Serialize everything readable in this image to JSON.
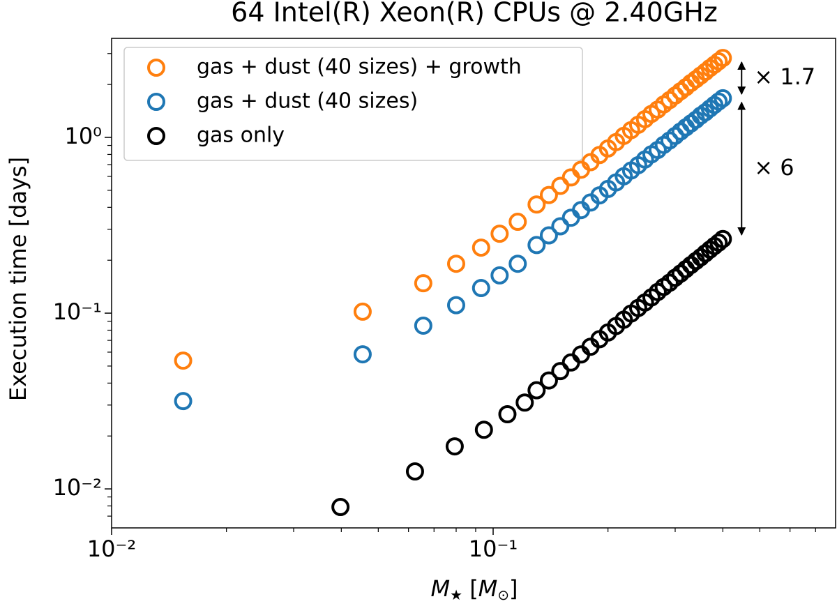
{
  "chart_data": {
    "type": "scatter",
    "title": "64 Intel(R) Xeon(R) CPUs @ 2.40GHz",
    "xlabel_parts": [
      "M",
      "★",
      " [",
      "M",
      "⊙",
      "]"
    ],
    "ylabel": "Execution time [days]",
    "xscale": "log",
    "yscale": "log",
    "xlim": [
      0.01,
      0.79
    ],
    "ylim": [
      0.006,
      3.66
    ],
    "xticks": [
      {
        "value": 0.01,
        "label": "10⁻²"
      },
      {
        "value": 0.1,
        "label": "10⁻¹"
      }
    ],
    "yticks": [
      {
        "value": 0.01,
        "label": "10⁻²"
      },
      {
        "value": 0.1,
        "label": "10⁻¹"
      },
      {
        "value": 1,
        "label": "10⁰"
      }
    ],
    "xminorticks": [
      0.02,
      0.03,
      0.04,
      0.05,
      0.06,
      0.07,
      0.08,
      0.09,
      0.2,
      0.3,
      0.4,
      0.5,
      0.6,
      0.7
    ],
    "yminorticks": [
      0.007,
      0.008,
      0.009,
      0.02,
      0.03,
      0.04,
      0.05,
      0.06,
      0.07,
      0.08,
      0.09,
      0.2,
      0.3,
      0.4,
      0.5,
      0.6,
      0.7,
      0.8,
      0.9,
      2,
      3
    ],
    "legend": "upper left",
    "series": [
      {
        "name": "gas + dust (40 sizes) + growth",
        "color": "#ff7f0e",
        "x": [
          0.0154,
          0.0455,
          0.0656,
          0.08,
          0.093,
          0.104,
          0.116,
          0.13,
          0.14,
          0.15,
          0.16,
          0.17,
          0.18,
          0.19,
          0.2,
          0.21,
          0.22,
          0.23,
          0.24,
          0.25,
          0.26,
          0.27,
          0.28,
          0.29,
          0.3,
          0.31,
          0.32,
          0.33,
          0.34,
          0.35,
          0.36,
          0.37,
          0.38,
          0.39,
          0.4
        ],
        "values": [
          0.0537,
          0.102,
          0.148,
          0.191,
          0.236,
          0.283,
          0.331,
          0.415,
          0.47,
          0.53,
          0.592,
          0.655,
          0.723,
          0.794,
          0.865,
          0.94,
          1.02,
          1.1,
          1.18,
          1.27,
          1.36,
          1.44,
          1.54,
          1.63,
          1.73,
          1.83,
          1.93,
          2.04,
          2.14,
          2.25,
          2.36,
          2.48,
          2.59,
          2.71,
          2.83
        ]
      },
      {
        "name": "gas + dust (40 sizes)",
        "color": "#1f77b4",
        "x": [
          0.0154,
          0.0455,
          0.0656,
          0.08,
          0.093,
          0.104,
          0.116,
          0.13,
          0.14,
          0.15,
          0.16,
          0.17,
          0.18,
          0.19,
          0.2,
          0.21,
          0.22,
          0.23,
          0.24,
          0.25,
          0.26,
          0.27,
          0.28,
          0.29,
          0.3,
          0.31,
          0.32,
          0.33,
          0.34,
          0.35,
          0.36,
          0.37,
          0.38,
          0.39,
          0.4
        ],
        "values": [
          0.0316,
          0.0583,
          0.0849,
          0.111,
          0.139,
          0.164,
          0.191,
          0.244,
          0.277,
          0.312,
          0.349,
          0.386,
          0.426,
          0.468,
          0.509,
          0.554,
          0.601,
          0.648,
          0.695,
          0.748,
          0.801,
          0.848,
          0.907,
          0.96,
          1.02,
          1.08,
          1.14,
          1.2,
          1.26,
          1.33,
          1.39,
          1.46,
          1.53,
          1.6,
          1.67
        ]
      },
      {
        "name": "gas only",
        "color": "#000000",
        "x": [
          0.0398,
          0.0624,
          0.0793,
          0.0946,
          0.109,
          0.121,
          0.13,
          0.14,
          0.15,
          0.16,
          0.17,
          0.18,
          0.19,
          0.2,
          0.21,
          0.22,
          0.23,
          0.24,
          0.25,
          0.26,
          0.27,
          0.28,
          0.29,
          0.3,
          0.31,
          0.32,
          0.33,
          0.34,
          0.35,
          0.36,
          0.37,
          0.38,
          0.39,
          0.4
        ],
        "values": [
          0.00789,
          0.01257,
          0.01746,
          0.0217,
          0.0266,
          0.031,
          0.0364,
          0.0414,
          0.0468,
          0.0524,
          0.0582,
          0.0644,
          0.0711,
          0.0776,
          0.0845,
          0.0918,
          0.0995,
          0.107,
          0.115,
          0.123,
          0.132,
          0.141,
          0.149,
          0.159,
          0.168,
          0.178,
          0.188,
          0.198,
          0.208,
          0.219,
          0.23,
          0.241,
          0.252,
          0.264
        ]
      }
    ],
    "annotations": [
      {
        "text": "× 1.7",
        "x": 0.448,
        "y": [
          2.83,
          1.67
        ]
      },
      {
        "text": "× 6",
        "x": 0.448,
        "y": [
          1.67,
          0.264
        ]
      }
    ]
  }
}
